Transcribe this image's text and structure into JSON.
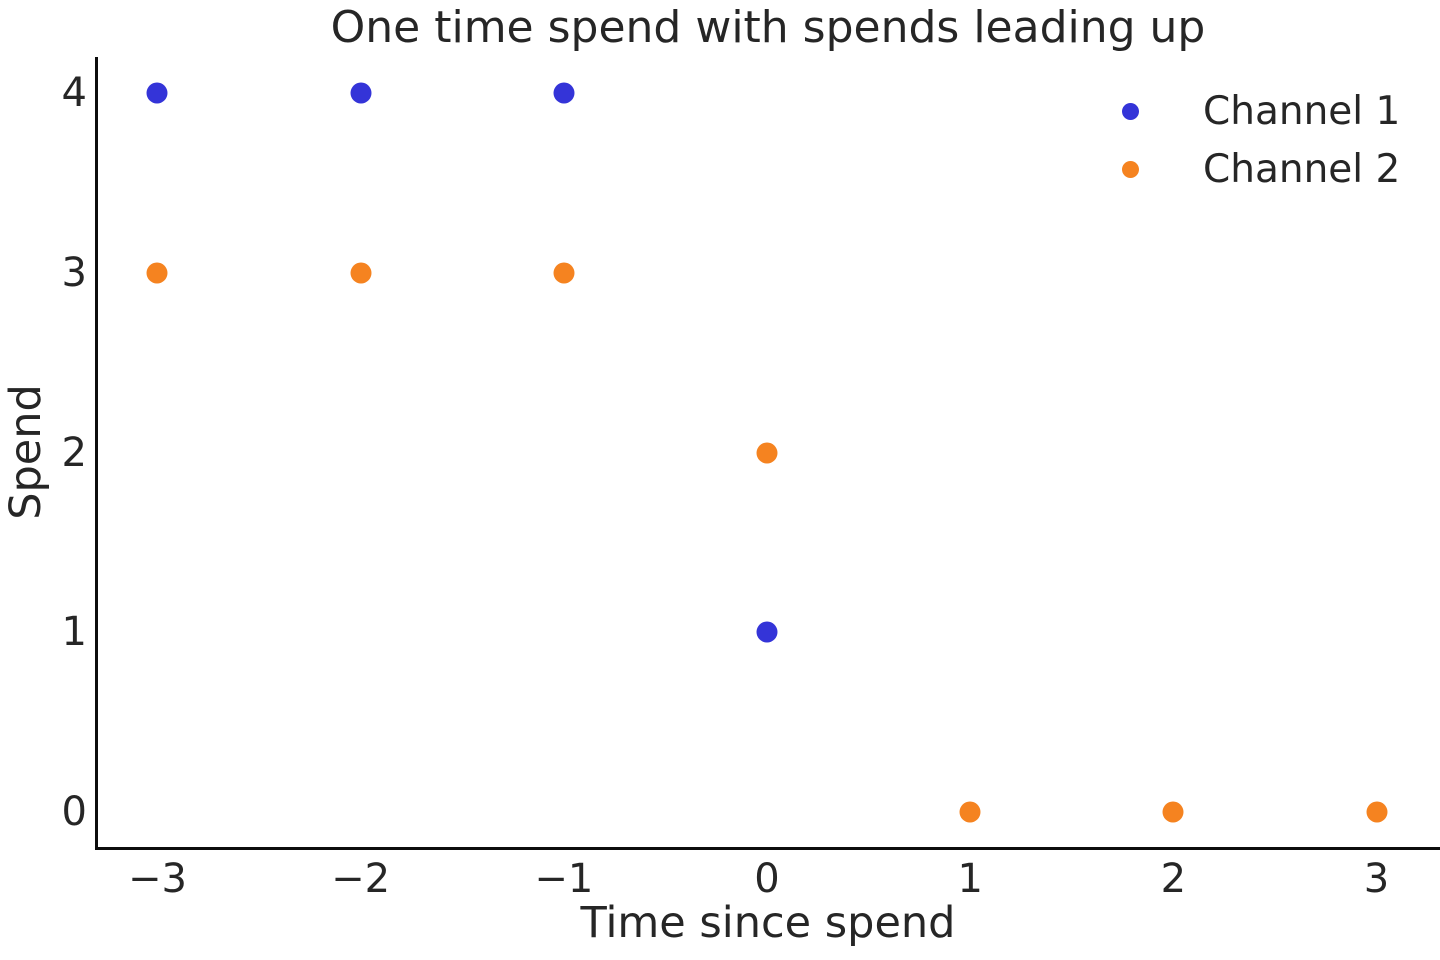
{
  "colors": {
    "background": "#ffffff",
    "text": "#262626",
    "spine": "#0d0d0d",
    "channel1": "#3434d8",
    "channel2": "#f58320"
  },
  "chart_data": {
    "type": "scatter",
    "title": "One time spend with spends leading up",
    "xlabel": "Time since spend",
    "ylabel": "Spend",
    "xlim": [
      -3.3,
      3.3
    ],
    "ylim": [
      -0.2,
      4.2
    ],
    "grid": false,
    "legend": {
      "position": "upper right",
      "frame": false
    },
    "xticks": [
      {
        "value": -3,
        "label": "−3"
      },
      {
        "value": -2,
        "label": "−2"
      },
      {
        "value": -1,
        "label": "−1"
      },
      {
        "value": 0,
        "label": "0"
      },
      {
        "value": 1,
        "label": "1"
      },
      {
        "value": 2,
        "label": "2"
      },
      {
        "value": 3,
        "label": "3"
      }
    ],
    "yticks": [
      {
        "value": 0,
        "label": "0"
      },
      {
        "value": 1,
        "label": "1"
      },
      {
        "value": 2,
        "label": "2"
      },
      {
        "value": 3,
        "label": "3"
      },
      {
        "value": 4,
        "label": "4"
      }
    ],
    "series": [
      {
        "name": "Channel 1",
        "color": "#3434d8",
        "marker": "circle",
        "points": [
          [
            -3,
            4
          ],
          [
            -2,
            4
          ],
          [
            -1,
            4
          ],
          [
            0,
            1
          ]
        ]
      },
      {
        "name": "Channel 2",
        "color": "#f58320",
        "marker": "circle",
        "points": [
          [
            -3,
            3
          ],
          [
            -2,
            3
          ],
          [
            -1,
            3
          ],
          [
            0,
            2
          ],
          [
            1,
            0
          ],
          [
            2,
            0
          ],
          [
            3,
            0
          ]
        ]
      }
    ]
  }
}
